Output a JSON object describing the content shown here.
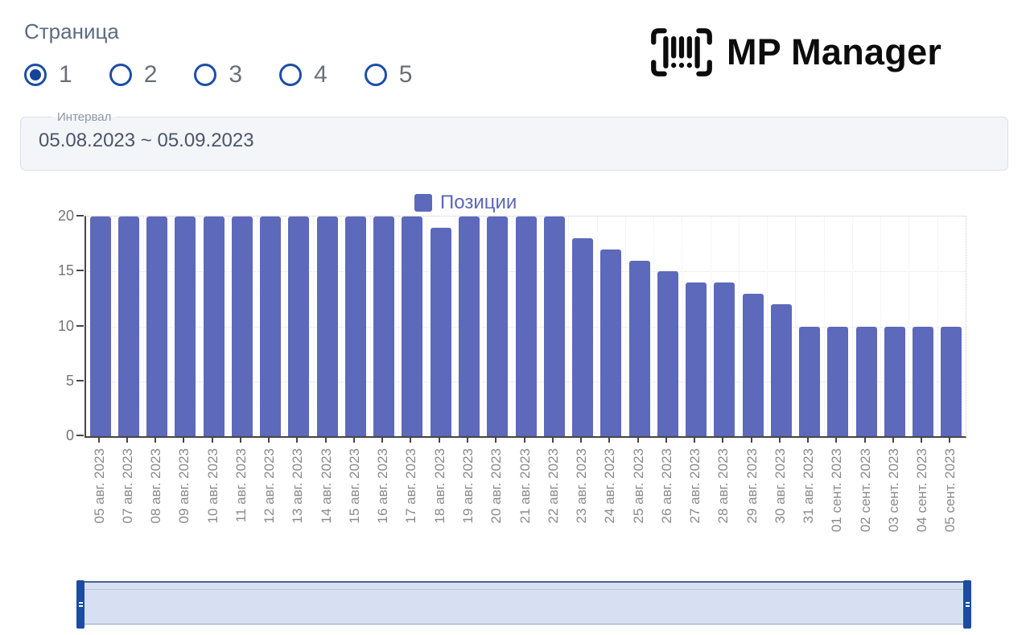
{
  "logo": {
    "text": "MP Manager",
    "icon": "barcode-scan-icon"
  },
  "page_selector": {
    "label": "Страница",
    "options": [
      {
        "label": "1",
        "selected": true
      },
      {
        "label": "2",
        "selected": false
      },
      {
        "label": "3",
        "selected": false
      },
      {
        "label": "4",
        "selected": false
      },
      {
        "label": "5",
        "selected": false
      }
    ]
  },
  "interval": {
    "label": "Интервал",
    "value": "05.08.2023 ~ 05.09.2023"
  },
  "chart_data": {
    "type": "bar",
    "title": "",
    "legend": [
      "Позиции"
    ],
    "legend_position": "top-center",
    "categories": [
      "05 авг. 2023",
      "07 авг. 2023",
      "08 авг. 2023",
      "09 авг. 2023",
      "10 авг. 2023",
      "11 авг. 2023",
      "12 авг. 2023",
      "13 авг. 2023",
      "14 авг. 2023",
      "15 авг. 2023",
      "16 авг. 2023",
      "17 авг. 2023",
      "18 авг. 2023",
      "19 авг. 2023",
      "20 авг. 2023",
      "21 авг. 2023",
      "22 авг. 2023",
      "23 авг. 2023",
      "24 авг. 2023",
      "25 авг. 2023",
      "26 авг. 2023",
      "27 авг. 2023",
      "28 авг. 2023",
      "29 авг. 2023",
      "30 авг. 2023",
      "31 авг. 2023",
      "01 сент. 2023",
      "02 сент. 2023",
      "03 сент. 2023",
      "04 сент. 2023",
      "05 сент. 2023"
    ],
    "series": [
      {
        "name": "Позиции",
        "values": [
          20,
          20,
          20,
          20,
          20,
          20,
          20,
          20,
          20,
          20,
          20,
          20,
          19,
          20,
          20,
          20,
          20,
          18,
          17,
          16,
          15,
          14,
          14,
          13,
          12,
          10,
          10,
          10,
          10,
          10,
          10
        ]
      }
    ],
    "xlabel": "",
    "ylabel": "",
    "ylim": [
      0,
      20
    ],
    "yticks": [
      0,
      5,
      10,
      15,
      20
    ],
    "grid": true
  },
  "datazoom": {
    "start_percent": 0,
    "end_percent": 100
  },
  "colors": {
    "accent": "#1d4ea6",
    "accent_dark": "#16439a",
    "bar": "#5d69bb",
    "legend_text": "#5b67b8",
    "axis": "#464646",
    "slider_track": "#d7dff2",
    "slider_handle": "#1b4ba3"
  }
}
